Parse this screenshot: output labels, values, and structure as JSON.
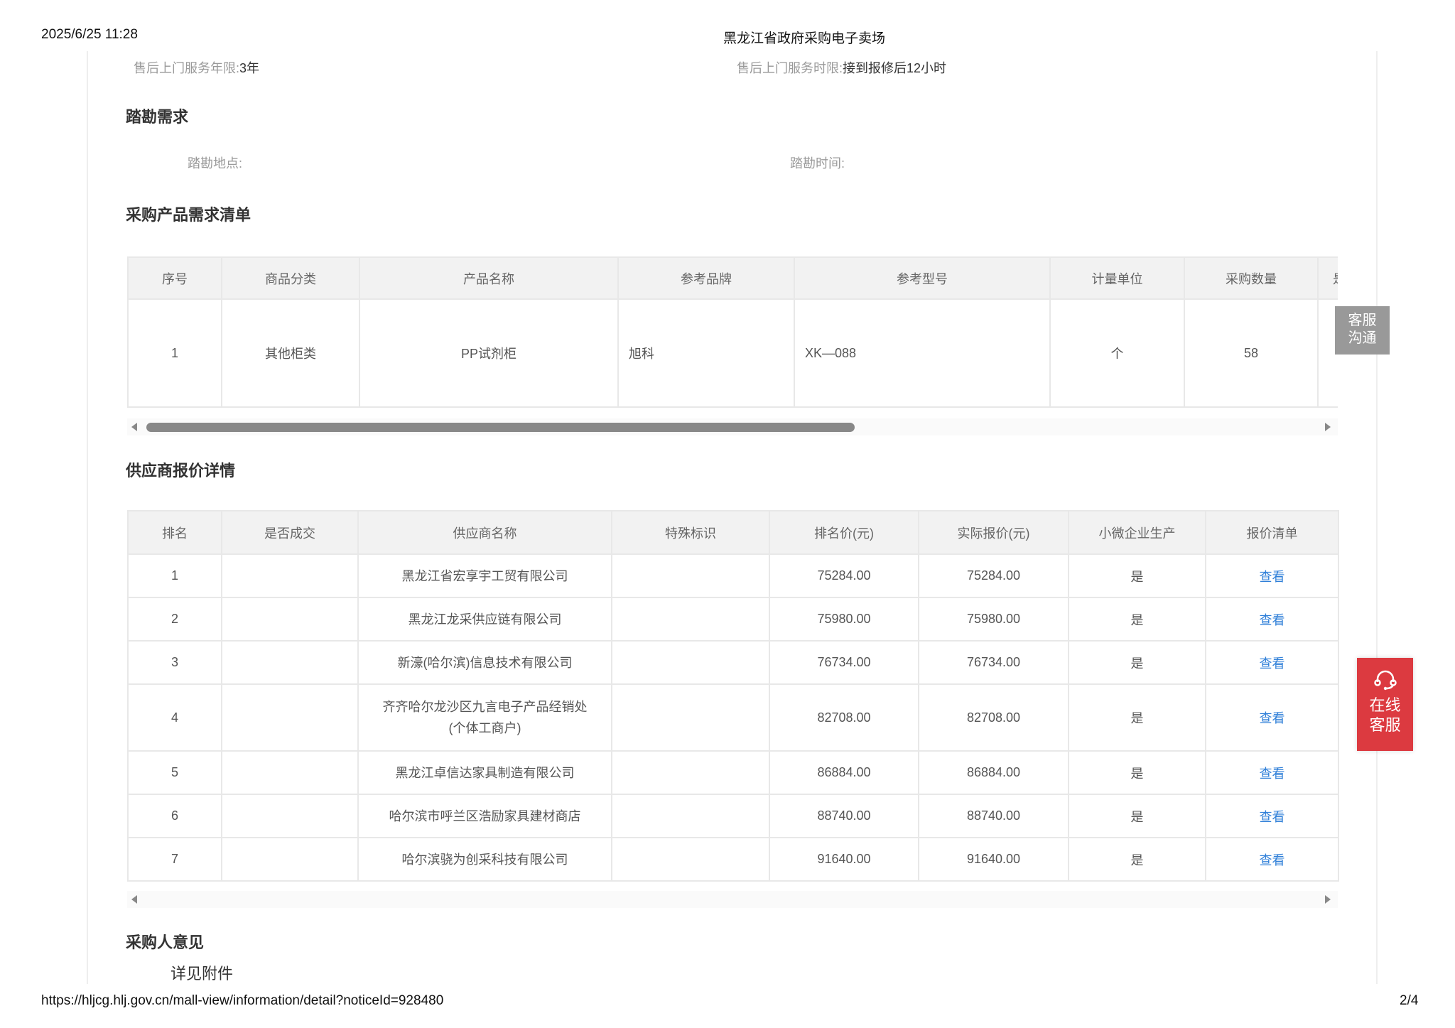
{
  "header": {
    "datetime": "2025/6/25 11:28",
    "title": "黑龙江省政府采购电子卖场"
  },
  "service": {
    "years_label": "售后上门服务年限:",
    "years_value": "3年",
    "time_label": "售后上门服务时限:",
    "time_value": "接到报修后12小时"
  },
  "survey": {
    "heading": "踏勘需求",
    "place_label": "踏勘地点:",
    "time_label": "踏勘时间:"
  },
  "products": {
    "heading": "采购产品需求清单",
    "columns": [
      "序号",
      "商品分类",
      "产品名称",
      "参考品牌",
      "参考型号",
      "计量单位",
      "采购数量",
      "是"
    ],
    "rows": [
      [
        "1",
        "其他柜类",
        "PP试剂柜",
        "旭科",
        "XK—088",
        "个",
        "58",
        ""
      ]
    ]
  },
  "quotes": {
    "heading": "供应商报价详情",
    "columns": [
      "排名",
      "是否成交",
      "供应商名称",
      "特殊标识",
      "排名价(元)",
      "实际报价(元)",
      "小微企业生产",
      "报价清单"
    ],
    "rows": [
      [
        "1",
        "",
        "黑龙江省宏享宇工贸有限公司",
        "",
        "75284.00",
        "75284.00",
        "是",
        "查看"
      ],
      [
        "2",
        "",
        "黑龙江龙采供应链有限公司",
        "",
        "75980.00",
        "75980.00",
        "是",
        "查看"
      ],
      [
        "3",
        "",
        "新濠(哈尔滨)信息技术有限公司",
        "",
        "76734.00",
        "76734.00",
        "是",
        "查看"
      ],
      [
        "4",
        "",
        "齐齐哈尔龙沙区九言电子产品经销处(个体工商户)",
        "",
        "82708.00",
        "82708.00",
        "是",
        "查看"
      ],
      [
        "5",
        "",
        "黑龙江卓信达家具制造有限公司",
        "",
        "86884.00",
        "86884.00",
        "是",
        "查看"
      ],
      [
        "6",
        "",
        "哈尔滨市呼兰区浩励家具建材商店",
        "",
        "88740.00",
        "88740.00",
        "是",
        "查看"
      ],
      [
        "7",
        "",
        "哈尔滨骁为创采科技有限公司",
        "",
        "91640.00",
        "91640.00",
        "是",
        "查看"
      ]
    ]
  },
  "opinion": {
    "heading": "采购人意见",
    "text": "详见附件"
  },
  "widgets": {
    "kefu_line1": "客服",
    "kefu_line2": "沟通",
    "online_line1": "在线",
    "online_line2": "客服",
    "online_icon": "headset-icon",
    "online_color": "#dc3a40",
    "link_color": "#2f7fd8"
  },
  "footer": {
    "url": "https://hljcg.hlj.gov.cn/mall-view/information/detail?noticeId=928480",
    "page": "2/4"
  }
}
